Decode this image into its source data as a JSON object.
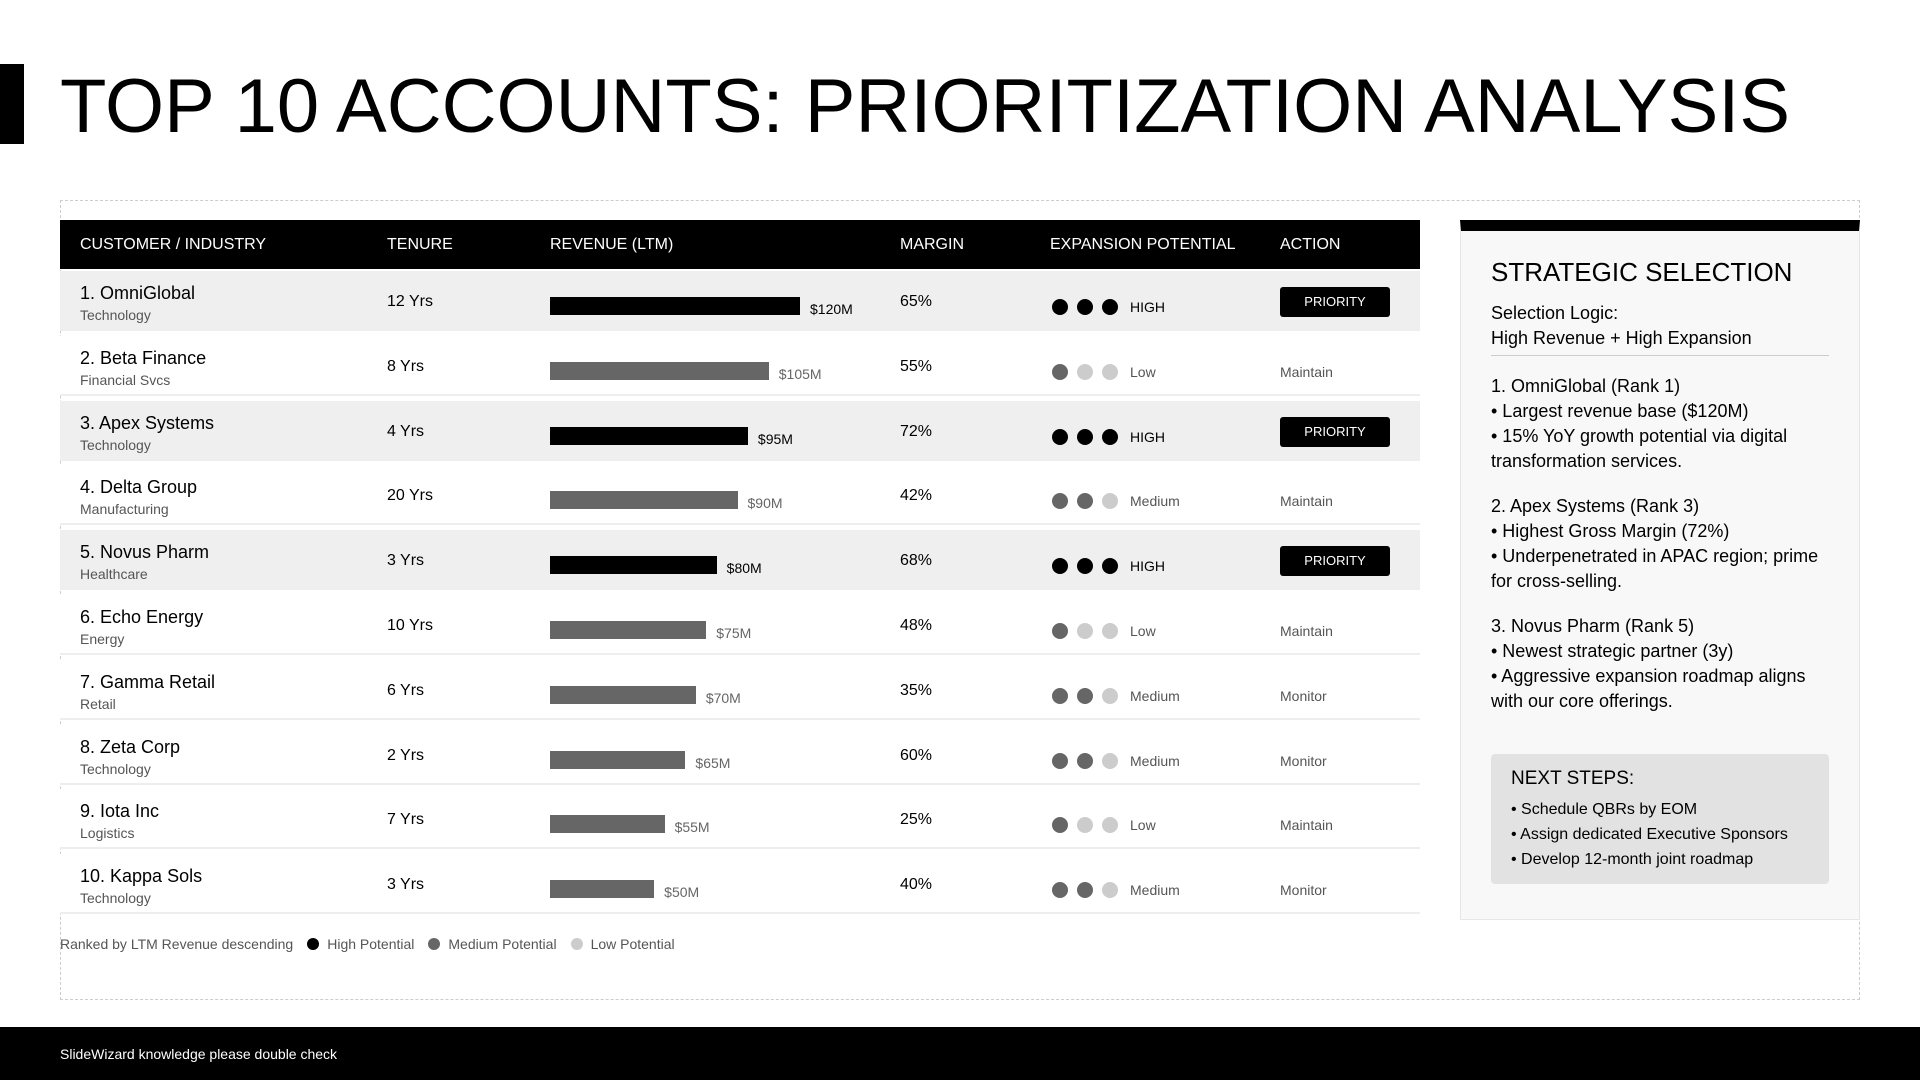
{
  "header": {
    "title": "TOP 10 ACCOUNTS: PRIORITIZATION ANALYSIS"
  },
  "table": {
    "columns": [
      "CUSTOMER / INDUSTRY",
      "TENURE",
      "REVENUE (LTM)",
      "MARGIN",
      "EXPANSION POTENTIAL",
      "ACTION"
    ],
    "rows": [
      {
        "name": "1. OmniGlobal",
        "industry": "Technology",
        "tenure": "12 Yrs",
        "revenue": 120,
        "revenue_label": "$120M",
        "margin": "65%",
        "potential": "HIGH",
        "dots": 3,
        "action": "PRIORITY",
        "priority": true
      },
      {
        "name": "2. Beta Finance",
        "industry": "Financial Svcs",
        "tenure": "8 Yrs",
        "revenue": 105,
        "revenue_label": "$105M",
        "margin": "55%",
        "potential": "Low",
        "dots": 1,
        "action": "Maintain",
        "priority": false
      },
      {
        "name": "3. Apex Systems",
        "industry": "Technology",
        "tenure": "4 Yrs",
        "revenue": 95,
        "revenue_label": "$95M",
        "margin": "72%",
        "potential": "HIGH",
        "dots": 3,
        "action": "PRIORITY",
        "priority": true
      },
      {
        "name": "4. Delta Group",
        "industry": "Manufacturing",
        "tenure": "20 Yrs",
        "revenue": 90,
        "revenue_label": "$90M",
        "margin": "42%",
        "potential": "Medium",
        "dots": 2,
        "action": "Maintain",
        "priority": false
      },
      {
        "name": "5. Novus Pharm",
        "industry": "Healthcare",
        "tenure": "3 Yrs",
        "revenue": 80,
        "revenue_label": "$80M",
        "margin": "68%",
        "potential": "HIGH",
        "dots": 3,
        "action": "PRIORITY",
        "priority": true
      },
      {
        "name": "6. Echo Energy",
        "industry": "Energy",
        "tenure": "10 Yrs",
        "revenue": 75,
        "revenue_label": "$75M",
        "margin": "48%",
        "potential": "Low",
        "dots": 1,
        "action": "Maintain",
        "priority": false
      },
      {
        "name": "7. Gamma Retail",
        "industry": "Retail",
        "tenure": "6 Yrs",
        "revenue": 70,
        "revenue_label": "$70M",
        "margin": "35%",
        "potential": "Medium",
        "dots": 2,
        "action": "Monitor",
        "priority": false
      },
      {
        "name": "8. Zeta Corp",
        "industry": "Technology",
        "tenure": "2 Yrs",
        "revenue": 65,
        "revenue_label": "$65M",
        "margin": "60%",
        "potential": "Medium",
        "dots": 2,
        "action": "Monitor",
        "priority": false
      },
      {
        "name": "9. Iota Inc",
        "industry": "Logistics",
        "tenure": "7 Yrs",
        "revenue": 55,
        "revenue_label": "$55M",
        "margin": "25%",
        "potential": "Low",
        "dots": 1,
        "action": "Maintain",
        "priority": false
      },
      {
        "name": "10. Kappa Sols",
        "industry": "Technology",
        "tenure": "3 Yrs",
        "revenue": 50,
        "revenue_label": "$50M",
        "margin": "40%",
        "potential": "Medium",
        "dots": 2,
        "action": "Monitor",
        "priority": false
      }
    ]
  },
  "legend": {
    "note": "Ranked by LTM Revenue descending",
    "items": [
      "High Potential",
      "Medium Potential",
      "Low Potential"
    ]
  },
  "panel": {
    "title": "STRATEGIC SELECTION",
    "logic_label": "Selection Logic:",
    "logic": "High Revenue + High Expansion",
    "sections": [
      {
        "heading": "1. OmniGlobal (Rank 1)",
        "lines": [
          "• Largest revenue base ($120M)",
          "• 15% YoY growth potential via digital transformation services."
        ]
      },
      {
        "heading": "2. Apex Systems (Rank 3)",
        "lines": [
          "• Highest Gross Margin (72%)",
          "• Underpenetrated in APAC region; prime for cross-selling."
        ]
      },
      {
        "heading": "3. Novus Pharm (Rank 5)",
        "lines": [
          "• Newest strategic partner (3y)",
          "• Aggressive expansion roadmap aligns with our core offerings."
        ]
      }
    ],
    "next_steps": {
      "title": "NEXT STEPS:",
      "items": [
        "• Schedule QBRs by EOM",
        "• Assign dedicated Executive Sponsors",
        "• Develop 12-month joint roadmap"
      ]
    }
  },
  "footer": {
    "text": "SlideWizard knowledge please double check"
  }
}
